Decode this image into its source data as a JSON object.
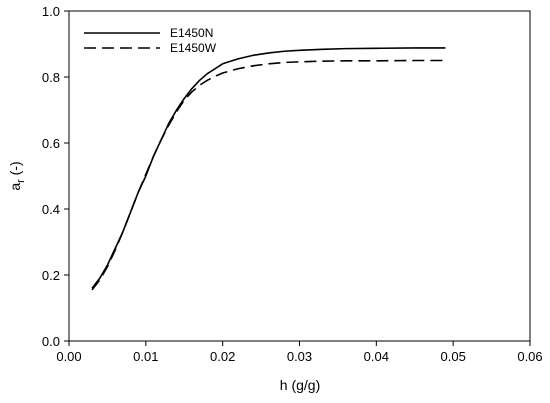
{
  "chart_data": {
    "type": "line",
    "xlabel": "h (g/g)",
    "ylabel_main": "a",
    "ylabel_sub": "r",
    "ylabel_unit": " (-)",
    "xlim": [
      0.0,
      0.06
    ],
    "ylim": [
      0.0,
      1.0
    ],
    "xticks": [
      0.0,
      0.01,
      0.02,
      0.03,
      0.04,
      0.05,
      0.06
    ],
    "xtick_labels": [
      "0.00",
      "0.01",
      "0.02",
      "0.03",
      "0.04",
      "0.05",
      "0.06"
    ],
    "yticks": [
      0.0,
      0.2,
      0.4,
      0.6,
      0.8,
      1.0
    ],
    "ytick_labels": [
      "0.0",
      "0.2",
      "0.4",
      "0.6",
      "0.8",
      "1.0"
    ],
    "grid": false,
    "legend_position": "top-left",
    "series": [
      {
        "name": "E1450N",
        "line_style": "solid",
        "x": [
          0.003,
          0.004,
          0.005,
          0.006,
          0.007,
          0.008,
          0.009,
          0.01,
          0.011,
          0.012,
          0.013,
          0.014,
          0.015,
          0.016,
          0.017,
          0.018,
          0.019,
          0.02,
          0.022,
          0.024,
          0.026,
          0.028,
          0.03,
          0.033,
          0.036,
          0.04,
          0.045,
          0.049
        ],
        "y": [
          0.16,
          0.19,
          0.23,
          0.28,
          0.33,
          0.39,
          0.45,
          0.5,
          0.56,
          0.61,
          0.66,
          0.7,
          0.735,
          0.765,
          0.79,
          0.81,
          0.825,
          0.84,
          0.855,
          0.866,
          0.873,
          0.878,
          0.881,
          0.884,
          0.886,
          0.887,
          0.888,
          0.888
        ]
      },
      {
        "name": "E1450W",
        "line_style": "dashed",
        "x": [
          0.003,
          0.004,
          0.005,
          0.006,
          0.007,
          0.008,
          0.009,
          0.01,
          0.011,
          0.012,
          0.013,
          0.014,
          0.015,
          0.016,
          0.017,
          0.018,
          0.019,
          0.02,
          0.022,
          0.024,
          0.026,
          0.028,
          0.03,
          0.033,
          0.036,
          0.04,
          0.045,
          0.049
        ],
        "y": [
          0.155,
          0.185,
          0.225,
          0.275,
          0.33,
          0.39,
          0.45,
          0.505,
          0.56,
          0.61,
          0.655,
          0.695,
          0.73,
          0.755,
          0.775,
          0.79,
          0.802,
          0.812,
          0.825,
          0.834,
          0.84,
          0.844,
          0.846,
          0.848,
          0.849,
          0.849,
          0.85,
          0.85
        ]
      }
    ]
  }
}
